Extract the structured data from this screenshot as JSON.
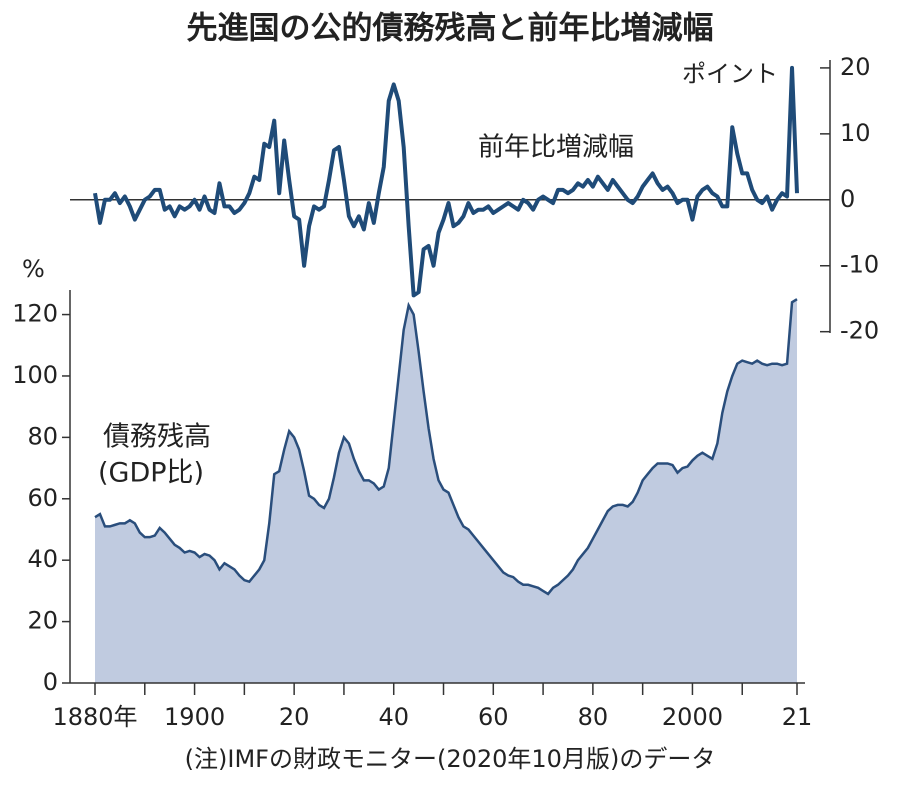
{
  "title": "先進国の公的債務残高と前年比増減幅",
  "note": "(注)IMFの財政モニター(2020年10月版)のデータ",
  "chart_data": [
    {
      "type": "line",
      "label": "前年比増減幅",
      "unit": "ポイント",
      "axis": "y2",
      "color": "#1f4b78",
      "xlim": [
        1880,
        2021
      ],
      "y2lim": [
        -20.2,
        21.2
      ],
      "y2ticks": [
        20,
        10,
        0,
        -10,
        -20
      ],
      "x": [
        1880,
        1881,
        1882,
        1883,
        1884,
        1885,
        1886,
        1887,
        1888,
        1889,
        1890,
        1891,
        1892,
        1893,
        1894,
        1895,
        1896,
        1897,
        1898,
        1899,
        1900,
        1901,
        1902,
        1903,
        1904,
        1905,
        1906,
        1907,
        1908,
        1909,
        1910,
        1911,
        1912,
        1913,
        1914,
        1915,
        1916,
        1917,
        1918,
        1919,
        1920,
        1921,
        1922,
        1923,
        1924,
        1925,
        1926,
        1927,
        1928,
        1929,
        1930,
        1931,
        1932,
        1933,
        1934,
        1935,
        1936,
        1937,
        1938,
        1939,
        1940,
        1941,
        1942,
        1943,
        1944,
        1945,
        1946,
        1947,
        1948,
        1949,
        1950,
        1951,
        1952,
        1953,
        1954,
        1955,
        1956,
        1957,
        1958,
        1959,
        1960,
        1961,
        1962,
        1963,
        1964,
        1965,
        1966,
        1967,
        1968,
        1969,
        1970,
        1971,
        1972,
        1973,
        1974,
        1975,
        1976,
        1977,
        1978,
        1979,
        1980,
        1981,
        1982,
        1983,
        1984,
        1985,
        1986,
        1987,
        1988,
        1989,
        1990,
        1991,
        1992,
        1993,
        1994,
        1995,
        1996,
        1997,
        1998,
        1999,
        2000,
        2001,
        2002,
        2003,
        2004,
        2005,
        2006,
        2007,
        2008,
        2009,
        2010,
        2011,
        2012,
        2013,
        2014,
        2015,
        2016,
        2017,
        2018,
        2019,
        2020,
        2021
      ],
      "values": [
        1,
        -3.5,
        0,
        0,
        1,
        -0.5,
        0.5,
        -1,
        -3,
        -1.5,
        0,
        0.5,
        1.5,
        1.5,
        -1.5,
        -1,
        -2.5,
        -1,
        -1.5,
        -1,
        0,
        -1.5,
        0.5,
        -1.5,
        -2,
        2.5,
        -1,
        -1,
        -2,
        -1.5,
        -0.5,
        1,
        3.5,
        3,
        8.5,
        8,
        12,
        1,
        9,
        3,
        -2.5,
        -3,
        -10,
        -4,
        -1,
        -1.5,
        -1,
        3,
        7.5,
        8,
        3,
        -2.5,
        -4,
        -2.5,
        -4.5,
        -0.5,
        -3.5,
        1,
        5,
        15,
        17.5,
        15,
        8,
        -4,
        -14.5,
        -14,
        -7.5,
        -7,
        -10,
        -5,
        -3,
        -0.5,
        -4,
        -3.5,
        -2.5,
        -0.5,
        -2,
        -1.5,
        -1.5,
        -1,
        -2,
        -1.5,
        -1,
        -0.5,
        -1,
        -1.5,
        0,
        -0.5,
        -1.5,
        0,
        0.5,
        0,
        -0.5,
        1.5,
        1.5,
        1,
        1.5,
        2.5,
        2,
        3,
        2,
        3.5,
        2.5,
        1.5,
        3,
        2,
        1,
        0,
        -0.5,
        0.5,
        2,
        3,
        4,
        2.5,
        1.5,
        2,
        1,
        -0.5,
        0,
        0,
        -3,
        0.5,
        1.5,
        2,
        1,
        0.5,
        -1,
        -1,
        11,
        7,
        4,
        4,
        1.5,
        0,
        -0.5,
        0.5,
        -1.5,
        0,
        1,
        0.5,
        20,
        1
      ]
    },
    {
      "type": "area",
      "label": "債務残高",
      "label2": "(GDP比)",
      "unit": "%",
      "color": "#2a4e7c",
      "fill": "#c0cbe0",
      "xlim": [
        1880,
        2021
      ],
      "ylim": [
        0,
        128
      ],
      "yticks": [
        0,
        20,
        40,
        60,
        80,
        100,
        120
      ],
      "xticks": [
        {
          "value": 1880,
          "label": "1880年"
        },
        1900,
        {
          "value": 1920,
          "label": "20"
        },
        {
          "value": 1940,
          "label": "40"
        },
        {
          "value": 1960,
          "label": "60"
        },
        {
          "value": 1980,
          "label": "80"
        },
        2000,
        {
          "value": 2021,
          "label": "21"
        }
      ],
      "xminorticks": [
        1890,
        1910,
        1930,
        1950,
        1970,
        1990,
        2010
      ],
      "x": [
        1880,
        1881,
        1882,
        1883,
        1884,
        1885,
        1886,
        1887,
        1888,
        1889,
        1890,
        1891,
        1892,
        1893,
        1894,
        1895,
        1896,
        1897,
        1898,
        1899,
        1900,
        1901,
        1902,
        1903,
        1904,
        1905,
        1906,
        1907,
        1908,
        1909,
        1910,
        1911,
        1912,
        1913,
        1914,
        1915,
        1916,
        1917,
        1918,
        1919,
        1920,
        1921,
        1922,
        1923,
        1924,
        1925,
        1926,
        1927,
        1928,
        1929,
        1930,
        1931,
        1932,
        1933,
        1934,
        1935,
        1936,
        1937,
        1938,
        1939,
        1940,
        1941,
        1942,
        1943,
        1944,
        1945,
        1946,
        1947,
        1948,
        1949,
        1950,
        1951,
        1952,
        1953,
        1954,
        1955,
        1956,
        1957,
        1958,
        1959,
        1960,
        1961,
        1962,
        1963,
        1964,
        1965,
        1966,
        1967,
        1968,
        1969,
        1970,
        1971,
        1972,
        1973,
        1974,
        1975,
        1976,
        1977,
        1978,
        1979,
        1980,
        1981,
        1982,
        1983,
        1984,
        1985,
        1986,
        1987,
        1988,
        1989,
        1990,
        1991,
        1992,
        1993,
        1994,
        1995,
        1996,
        1997,
        1998,
        1999,
        2000,
        2001,
        2002,
        2003,
        2004,
        2005,
        2006,
        2007,
        2008,
        2009,
        2010,
        2011,
        2012,
        2013,
        2014,
        2015,
        2016,
        2017,
        2018,
        2019,
        2020,
        2021
      ],
      "values": [
        54,
        55,
        51,
        51,
        51.5,
        52,
        52,
        53,
        52,
        49,
        47.5,
        47.5,
        48,
        50.5,
        49,
        47,
        45,
        44,
        42.5,
        43,
        42.5,
        41,
        42,
        41.5,
        40,
        37,
        39,
        38,
        37,
        35,
        33.5,
        33,
        35,
        37,
        40,
        52,
        68,
        69,
        76,
        82,
        80,
        76,
        69,
        61,
        60,
        58,
        57,
        60,
        67,
        75,
        80,
        78,
        73,
        69,
        66,
        66,
        65,
        63,
        64,
        70,
        85,
        100,
        115,
        123,
        120,
        108,
        95,
        83,
        73,
        66,
        63,
        62,
        58,
        54,
        51,
        50,
        48,
        46,
        44,
        42,
        40,
        38,
        36,
        35,
        34.5,
        33,
        32,
        32,
        31.5,
        31,
        30,
        29,
        31,
        32,
        33.5,
        35,
        37,
        40,
        42,
        44,
        47,
        50,
        53,
        56,
        57.5,
        58,
        58,
        57.5,
        59,
        62,
        66,
        68,
        70,
        71.5,
        71.5,
        71.5,
        71,
        68.5,
        70,
        70.5,
        72.5,
        74,
        75,
        74,
        73,
        78,
        88,
        95,
        100,
        104,
        105,
        104.5,
        104,
        105,
        104,
        103.5,
        104,
        104,
        103.5,
        104,
        124,
        125
      ]
    }
  ]
}
